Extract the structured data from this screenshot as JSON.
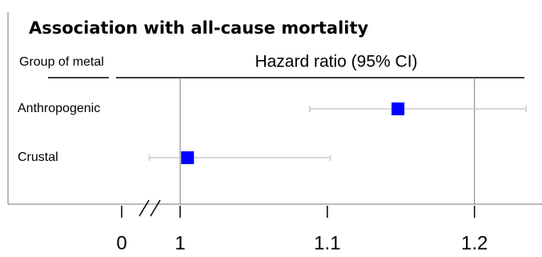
{
  "chart_data": {
    "type": "forest",
    "title": "Association with all-cause mortality",
    "column_header": "Group of metal",
    "x_label": "Hazard ratio (95% CI)",
    "categories": [
      "Anthropogenic",
      "Crustal"
    ],
    "values": [
      1.148,
      1.005
    ],
    "lower": [
      1.088,
      0.979
    ],
    "upper": [
      1.235,
      1.102
    ],
    "color": "#0000ff",
    "ci_color": "#cccccc",
    "xlim": [
      0.883,
      1.235
    ],
    "xticks": [
      0,
      1,
      1.1,
      1.2
    ],
    "axis_break": true,
    "reference_lines": [
      1,
      1.2
    ]
  }
}
